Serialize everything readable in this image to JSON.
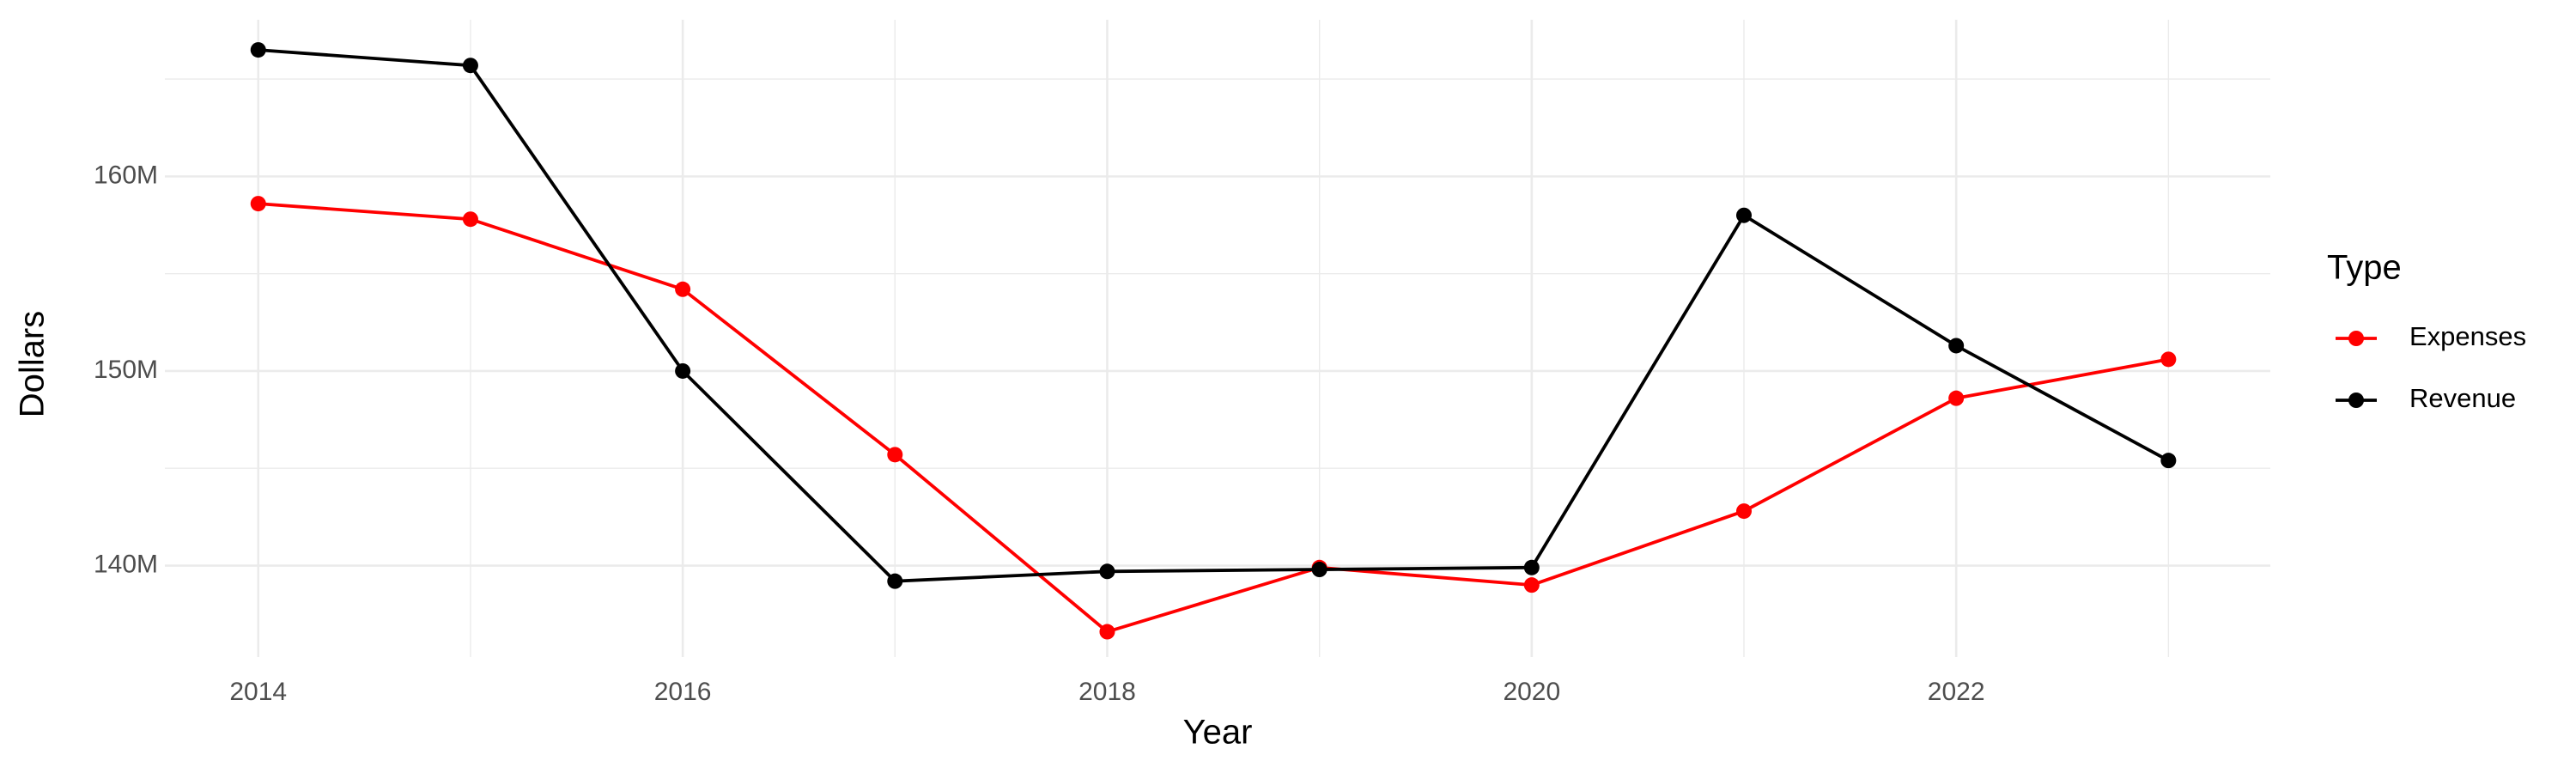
{
  "chart_data": {
    "type": "line",
    "x_label": "Year",
    "y_label": "Dollars",
    "legend_title": "Type",
    "x": [
      2014,
      2015,
      2016,
      2017,
      2018,
      2019,
      2020,
      2021,
      2022,
      2023
    ],
    "series": [
      {
        "name": "Expenses",
        "color": "#ff0000",
        "values": [
          158600000,
          157800000,
          154200000,
          145700000,
          136600000,
          139900000,
          139000000,
          142800000,
          148600000,
          150600000
        ]
      },
      {
        "name": "Revenue",
        "color": "#000000",
        "values": [
          166500000,
          165700000,
          150000000,
          139200000,
          139700000,
          139800000,
          139900000,
          158000000,
          151300000,
          145400000
        ]
      }
    ],
    "xlim": [
      2013.56,
      2023.48
    ],
    "xticks": [
      2014,
      2016,
      2018,
      2020,
      2022
    ],
    "ylim": [
      135300000,
      168050000
    ],
    "yticks": [
      {
        "value": 140000000,
        "label": "140M"
      },
      {
        "value": 150000000,
        "label": "150M"
      },
      {
        "value": 160000000,
        "label": "160M"
      }
    ],
    "grid": true,
    "legend": "right"
  }
}
